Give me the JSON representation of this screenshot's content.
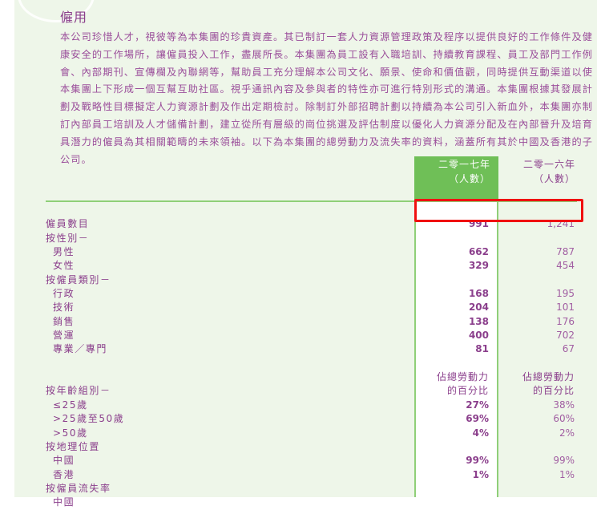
{
  "section_title": "僱用",
  "paragraph": "本公司珍惜人才，視彼等為本集團的珍貴資產。其已制訂一套人力資源管理政策及程序以提供良好的工作條件及健康安全的工作場所，讓僱員投入工作，盡展所長。本集團為員工設有入職培訓、持續教育課程、員工及部門工作例會、內部期刊、宣傳欄及內聯網等，幫助員工充分理解本公司文化、願景、使命和價值觀，同時提供互動渠道以使本集團上下形成一個互幫互助社區。視乎通訊內容及參與者的特性亦可進行特別形式的溝通。本集團根據其發展計劃及戰略性目標擬定人力資源計劃及作出定期檢討。除制訂外部招聘計劃以持續為本公司引入新血外，本集團亦制訂內部員工培訓及人才儲備計劃，建立從所有層級的崗位挑選及評估制度以優化人力資源分配及在內部晉升及培育具潛力的僱員為其相關範疇的未來領袖。以下為本集團的總勞動力及流失率的資料，涵蓋所有其於中國及香港的子公司。",
  "table": {
    "headers": {
      "y2017": [
        "二零一七年",
        "（人數）"
      ],
      "y2016": [
        "二零一六年",
        "（人數）"
      ]
    },
    "rows": [
      {
        "label": "",
        "v17": "",
        "v16": "",
        "indent": false
      },
      {
        "label": "僱員數目",
        "v17": "991",
        "v16": "1,241",
        "indent": false,
        "highlighted": true
      },
      {
        "label": "按性別－",
        "v17": "",
        "v16": "",
        "indent": false
      },
      {
        "label": "男性",
        "v17": "662",
        "v16": "787",
        "indent": true
      },
      {
        "label": "女性",
        "v17": "329",
        "v16": "454",
        "indent": true
      },
      {
        "label": "按僱員類別－",
        "v17": "",
        "v16": "",
        "indent": false
      },
      {
        "label": "行政",
        "v17": "168",
        "v16": "195",
        "indent": true
      },
      {
        "label": "技術",
        "v17": "204",
        "v16": "101",
        "indent": true
      },
      {
        "label": "銷售",
        "v17": "138",
        "v16": "176",
        "indent": true
      },
      {
        "label": "營運",
        "v17": "400",
        "v16": "702",
        "indent": true
      },
      {
        "label": "專業／專門",
        "v17": "81",
        "v16": "67",
        "indent": true
      },
      {
        "label": "",
        "v17": "",
        "v16": "",
        "indent": false
      },
      {
        "label": "",
        "v17": "佔總勞動力",
        "v16": "佔總勞動力",
        "indent": false,
        "subheader": true
      },
      {
        "label": "按年齡組別－",
        "v17": "的百分比",
        "v16": "的百分比",
        "indent": false,
        "subheader": true
      },
      {
        "label": "≤25歲",
        "v17": "27%",
        "v16": "38%",
        "indent": true
      },
      {
        "label": ">25歲至50歲",
        "v17": "69%",
        "v16": "60%",
        "indent": true
      },
      {
        "label": ">50歲",
        "v17": "4%",
        "v16": "2%",
        "indent": true
      },
      {
        "label": "按地理位置",
        "v17": "",
        "v16": "",
        "indent": false
      },
      {
        "label": "中國",
        "v17": "99%",
        "v16": "99%",
        "indent": true
      },
      {
        "label": "香港",
        "v17": "1%",
        "v16": "1%",
        "indent": true
      },
      {
        "label": "按僱員流失率",
        "v17": "",
        "v16": "",
        "indent": false
      },
      {
        "label": "中國",
        "v17": "",
        "v16": "",
        "indent": true
      }
    ]
  },
  "colors": {
    "text": "#8b3f8c",
    "accent_green": "#6fbf57",
    "background": "#eef6e9",
    "highlight_box": "#f01010"
  }
}
